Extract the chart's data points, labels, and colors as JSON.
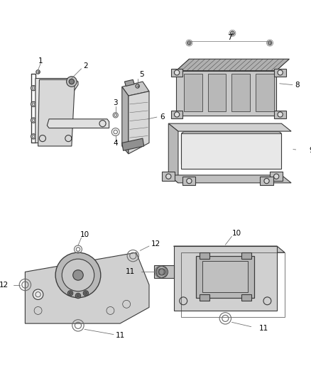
{
  "bg_color": "#ffffff",
  "line_color": "#6a6a6a",
  "dark_color": "#3a3a3a",
  "label_color": "#000000",
  "figsize": [
    4.38,
    5.33
  ],
  "dpi": 100,
  "font_size": 7.5
}
